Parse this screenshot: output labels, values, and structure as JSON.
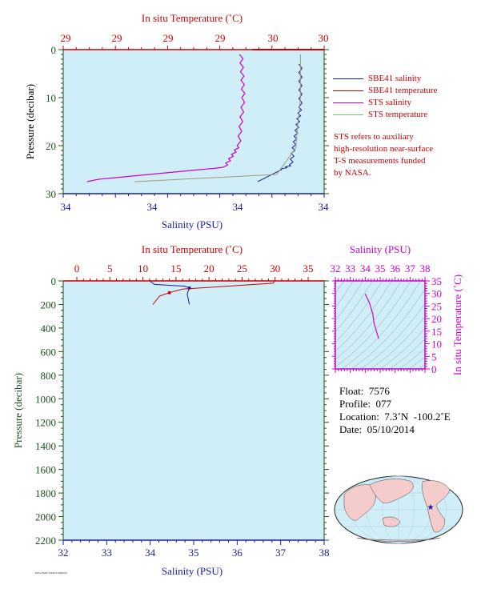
{
  "top_chart": {
    "top_axis_label": "In situ Temperature (˚C)",
    "top_ticks": [
      "29",
      "29",
      "29",
      "29",
      "30",
      "30"
    ],
    "y_label": "Pressure (decibar)",
    "y_ticks": [
      "0",
      "10",
      "20",
      "30"
    ],
    "bottom_ticks": [
      "34",
      "34",
      "34",
      "34"
    ],
    "bottom_axis_label": "Salinity (PSU)"
  },
  "legend": {
    "items": [
      {
        "label": "SBE41 salinity",
        "color": "#1a1aa6"
      },
      {
        "label": "SBE41 temperature",
        "color": "#cc0000"
      },
      {
        "label": "STS salinity",
        "color": "#cc00cc"
      },
      {
        "label": "STS temperature",
        "color": "#66cc66"
      }
    ],
    "note_lines": [
      "STS refers to auxiliary",
      "high-resolution near-surface",
      "T-S measurements funded",
      "by NASA."
    ]
  },
  "bottom_chart": {
    "top_axis_label": "In situ Temperature (˚C)",
    "top_ticks": [
      "0",
      "5",
      "10",
      "15",
      "20",
      "25",
      "30",
      "35"
    ],
    "y_label": "Pressure (decibar)",
    "y_ticks": [
      "0",
      "200",
      "400",
      "600",
      "800",
      "1000",
      "1200",
      "1400",
      "1600",
      "1800",
      "2000",
      "2200"
    ],
    "bottom_ticks": [
      "32",
      "33",
      "34",
      "35",
      "36",
      "37",
      "38"
    ],
    "bottom_axis_label": "Salinity (PSU)"
  },
  "ts_chart": {
    "top_axis_label": "Salinity (PSU)",
    "top_ticks": [
      "32",
      "33",
      "34",
      "35",
      "36",
      "37",
      "38"
    ],
    "right_axis_label": "In situ Temperature (˚C)",
    "right_ticks": [
      "0",
      "5",
      "10",
      "15",
      "20",
      "25",
      "30",
      "35"
    ]
  },
  "info": {
    "float": "Float:  7576",
    "profile": "Profile:  077",
    "location": "Location:  7.3˚N  -100.2˚E",
    "date": "Date:  05/10/2014"
  },
  "colors": {
    "plot_bg": "#cfeef8",
    "red": "#cc0000",
    "blue": "#1a1aa6",
    "magenta": "#cc00cc",
    "green": "#66cc66",
    "map_ocean": "#cfeef8",
    "map_land": "#f5cccc"
  },
  "chart_data": [
    {
      "type": "line",
      "title": "",
      "xlabel": "Salinity (PSU)",
      "x2label": "In situ Temperature (˚C)",
      "ylabel": "Pressure (decibar)",
      "ylim": [
        30,
        0
      ],
      "series": [
        {
          "name": "SBE41 salinity",
          "x_axis": "bottom",
          "points": [
            [
              34.3,
              3
            ],
            [
              34.3,
              12
            ],
            [
              34.28,
              18
            ],
            [
              34.26,
              24
            ],
            [
              34.18,
              26
            ],
            [
              34.12,
              27.5
            ]
          ]
        },
        {
          "name": "SBE41 temperature",
          "x_axis": "top",
          "points": [
            [
              30.0,
              0
            ]
          ]
        },
        {
          "name": "STS salinity",
          "x_axis": "bottom",
          "points": [
            [
              34.05,
              1
            ],
            [
              34.06,
              10
            ],
            [
              34.04,
              20
            ],
            [
              33.98,
              24.5
            ],
            [
              33.45,
              27
            ],
            [
              33.4,
              27.5
            ]
          ]
        },
        {
          "name": "STS temperature",
          "x_axis": "top",
          "points": [
            [
              30.0,
              1
            ],
            [
              30.0,
              10
            ],
            [
              29.98,
              20.5
            ],
            [
              29.9,
              26
            ],
            [
              29.3,
              27.5
            ]
          ]
        }
      ]
    },
    {
      "type": "line",
      "title": "",
      "xlabel": "Salinity (PSU)",
      "x2label": "In situ Temperature (˚C)",
      "ylabel": "Pressure (decibar)",
      "xlim": [
        32,
        38
      ],
      "x2lim": [
        0,
        35
      ],
      "ylim": [
        2200,
        0
      ],
      "series": [
        {
          "name": "Salinity",
          "x_axis": "bottom",
          "points": [
            [
              34.0,
              5
            ],
            [
              34.1,
              30
            ],
            [
              34.8,
              45
            ],
            [
              34.9,
              60
            ],
            [
              34.85,
              110
            ],
            [
              34.9,
              200
            ]
          ]
        },
        {
          "name": "Temperature",
          "x_axis": "top",
          "points": [
            [
              29.9,
              5
            ],
            [
              29.7,
              20
            ],
            [
              20,
              55
            ],
            [
              16,
              70
            ],
            [
              14,
              100
            ],
            [
              12.5,
              130
            ],
            [
              11.5,
              200
            ]
          ]
        }
      ]
    },
    {
      "type": "line",
      "title": "",
      "xlabel": "Salinity (PSU)",
      "ylabel": "In situ Temperature (˚C)",
      "xlim": [
        32,
        38
      ],
      "ylim": [
        0,
        35
      ],
      "series": [
        {
          "name": "T-S",
          "points": [
            [
              34.0,
              29.8
            ],
            [
              34.3,
              26
            ],
            [
              34.5,
              22
            ],
            [
              34.6,
              18
            ],
            [
              34.8,
              14
            ],
            [
              34.9,
              12
            ]
          ]
        }
      ]
    }
  ]
}
